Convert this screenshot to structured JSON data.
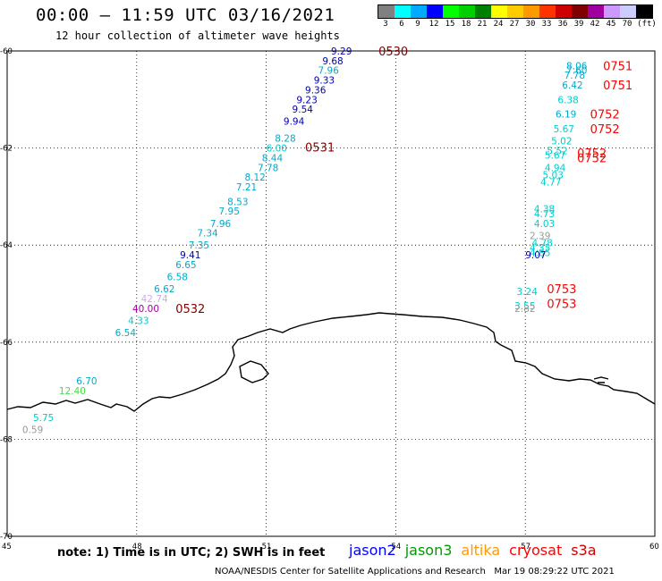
{
  "title": "00:00 – 11:59 UTC 03/16/2021",
  "subtitle": "12 hour collection of altimeter wave heights",
  "colorbar": {
    "colors": [
      "#808080",
      "#00ffff",
      "#00aaff",
      "#0000ff",
      "#00ff00",
      "#00d000",
      "#008000",
      "#ffff00",
      "#ffcc00",
      "#ff9900",
      "#ff3300",
      "#cc0000",
      "#800000",
      "#a000a0",
      "#cc99ff",
      "#ccccff",
      "#000000"
    ],
    "labels": [
      "3",
      "6",
      "9",
      "12",
      "15",
      "18",
      "21",
      "24",
      "27",
      "30",
      "33",
      "36",
      "39",
      "42",
      "45",
      "70",
      "(ft)"
    ]
  },
  "axes": {
    "lon_labels": [
      "45",
      "48",
      "51",
      "54",
      "57",
      "60"
    ],
    "lat_labels": [
      "-60",
      "-62",
      "-64",
      "-66",
      "-68",
      "-70"
    ]
  },
  "tracks": [
    {
      "time": "0530",
      "lon": 53.6,
      "lat": -60.0,
      "color": "#800000"
    },
    {
      "time": "0531",
      "lon": 51.9,
      "lat": -61.98,
      "color": "#800000"
    },
    {
      "time": "0532",
      "lon": 48.9,
      "lat": -65.3,
      "color": "#800000"
    },
    {
      "time": "0751",
      "lon": 58.8,
      "lat": -60.3,
      "color": "#ff0000"
    },
    {
      "time": "0751",
      "lon": 58.8,
      "lat": -60.7,
      "color": "#ff0000"
    },
    {
      "time": "0752",
      "lon": 58.5,
      "lat": -61.3,
      "color": "#ff0000"
    },
    {
      "time": "0752",
      "lon": 58.5,
      "lat": -61.6,
      "color": "#ff0000"
    },
    {
      "time": "0752",
      "lon": 58.2,
      "lat": -62.1,
      "color": "#ff0000"
    },
    {
      "time": "0752",
      "lon": 58.2,
      "lat": -62.2,
      "color": "#ff0000"
    },
    {
      "time": "0753",
      "lon": 57.5,
      "lat": -64.9,
      "color": "#ff0000"
    },
    {
      "time": "0753",
      "lon": 57.5,
      "lat": -65.2,
      "color": "#ff0000"
    }
  ],
  "observations": [
    {
      "v": "9.29",
      "lon": 52.5,
      "lat": -60.0,
      "color": "#0000aa"
    },
    {
      "v": "9.68",
      "lon": 52.3,
      "lat": -60.2,
      "color": "#0000aa"
    },
    {
      "v": "7.96",
      "lon": 52.2,
      "lat": -60.4,
      "color": "#00aacc"
    },
    {
      "v": "9.33",
      "lon": 52.1,
      "lat": -60.6,
      "color": "#0000aa"
    },
    {
      "v": "9.36",
      "lon": 51.9,
      "lat": -60.8,
      "color": "#0000aa"
    },
    {
      "v": "9.23",
      "lon": 51.7,
      "lat": -61.0,
      "color": "#0000aa"
    },
    {
      "v": "9.54",
      "lon": 51.6,
      "lat": -61.2,
      "color": "#0000aa"
    },
    {
      "v": "9.94",
      "lon": 51.4,
      "lat": -61.45,
      "color": "#0000aa"
    },
    {
      "v": "8.28",
      "lon": 51.2,
      "lat": -61.8,
      "color": "#00aacc"
    },
    {
      "v": "6.00",
      "lon": 51.0,
      "lat": -62.0,
      "color": "#00cccc"
    },
    {
      "v": "8.44",
      "lon": 50.9,
      "lat": -62.2,
      "color": "#00aacc"
    },
    {
      "v": "7.78",
      "lon": 50.8,
      "lat": -62.4,
      "color": "#00aacc"
    },
    {
      "v": "8.12",
      "lon": 50.5,
      "lat": -62.6,
      "color": "#00aacc"
    },
    {
      "v": "7.21",
      "lon": 50.3,
      "lat": -62.8,
      "color": "#00aacc"
    },
    {
      "v": "8.53",
      "lon": 50.1,
      "lat": -63.1,
      "color": "#00aacc"
    },
    {
      "v": "7.95",
      "lon": 49.9,
      "lat": -63.3,
      "color": "#00aacc"
    },
    {
      "v": "7.96",
      "lon": 49.7,
      "lat": -63.55,
      "color": "#00aacc"
    },
    {
      "v": "7.34",
      "lon": 49.4,
      "lat": -63.75,
      "color": "#00aacc"
    },
    {
      "v": "7.35",
      "lon": 49.2,
      "lat": -64.0,
      "color": "#00aacc"
    },
    {
      "v": "9.41",
      "lon": 49.0,
      "lat": -64.2,
      "color": "#0000aa"
    },
    {
      "v": "6.65",
      "lon": 48.9,
      "lat": -64.4,
      "color": "#00aacc"
    },
    {
      "v": "6.58",
      "lon": 48.7,
      "lat": -64.65,
      "color": "#00aacc"
    },
    {
      "v": "6.62",
      "lon": 48.4,
      "lat": -64.9,
      "color": "#00aacc"
    },
    {
      "v": "42.74",
      "lon": 48.1,
      "lat": -65.1,
      "color": "#ccaaee"
    },
    {
      "v": "40.00",
      "lon": 47.9,
      "lat": -65.3,
      "color": "#a000a0"
    },
    {
      "v": "4.33",
      "lon": 47.8,
      "lat": -65.55,
      "color": "#00cccc"
    },
    {
      "v": "6.54",
      "lon": 47.5,
      "lat": -65.8,
      "color": "#00aacc"
    },
    {
      "v": "6.70",
      "lon": 46.6,
      "lat": -66.8,
      "color": "#00aacc"
    },
    {
      "v": "12.40",
      "lon": 46.2,
      "lat": -67.0,
      "color": "#44dd44"
    },
    {
      "v": "5.75",
      "lon": 45.6,
      "lat": -67.55,
      "color": "#00cccc"
    },
    {
      "v": "0.59",
      "lon": 45.35,
      "lat": -67.8,
      "color": "#999999"
    },
    {
      "v": "8.06",
      "lon": 57.95,
      "lat": -60.3,
      "color": "#00aacc"
    },
    {
      "v": "7.60",
      "lon": 57.95,
      "lat": -60.4,
      "color": "#00aacc"
    },
    {
      "v": "7.78",
      "lon": 57.9,
      "lat": -60.5,
      "color": "#00aacc"
    },
    {
      "v": "6.42",
      "lon": 57.85,
      "lat": -60.7,
      "color": "#00aacc"
    },
    {
      "v": "6.38",
      "lon": 57.75,
      "lat": -61.0,
      "color": "#00cccc"
    },
    {
      "v": "6.19",
      "lon": 57.7,
      "lat": -61.3,
      "color": "#00aacc"
    },
    {
      "v": "5.67",
      "lon": 57.65,
      "lat": -61.6,
      "color": "#00cccc"
    },
    {
      "v": "5.02",
      "lon": 57.6,
      "lat": -61.85,
      "color": "#00cccc"
    },
    {
      "v": "5.52",
      "lon": 57.5,
      "lat": -62.05,
      "color": "#00cccc"
    },
    {
      "v": "5.67",
      "lon": 57.45,
      "lat": -62.15,
      "color": "#00cccc"
    },
    {
      "v": "4.94",
      "lon": 57.45,
      "lat": -62.4,
      "color": "#00cccc"
    },
    {
      "v": "5.03",
      "lon": 57.4,
      "lat": -62.55,
      "color": "#00cccc"
    },
    {
      "v": "4.77",
      "lon": 57.35,
      "lat": -62.7,
      "color": "#00cccc"
    },
    {
      "v": "4.38",
      "lon": 57.2,
      "lat": -63.25,
      "color": "#00cccc"
    },
    {
      "v": "4.73",
      "lon": 57.2,
      "lat": -63.35,
      "color": "#00cccc"
    },
    {
      "v": "4.03",
      "lon": 57.2,
      "lat": -63.55,
      "color": "#00cccc"
    },
    {
      "v": "2.39",
      "lon": 57.1,
      "lat": -63.8,
      "color": "#999999"
    },
    {
      "v": "4.78",
      "lon": 57.15,
      "lat": -63.95,
      "color": "#00cccc"
    },
    {
      "v": "4.35",
      "lon": 57.1,
      "lat": -64.05,
      "color": "#00cccc"
    },
    {
      "v": "4.85",
      "lon": 57.1,
      "lat": -64.15,
      "color": "#00cccc"
    },
    {
      "v": "9.07",
      "lon": 57.0,
      "lat": -64.2,
      "color": "#0000aa"
    },
    {
      "v": "3.24",
      "lon": 56.8,
      "lat": -64.95,
      "color": "#00cccc"
    },
    {
      "v": "3.55",
      "lon": 56.75,
      "lat": -65.25,
      "color": "#00cccc"
    },
    {
      "v": "2.82",
      "lon": 56.75,
      "lat": -65.3,
      "color": "#999999"
    }
  ],
  "note": "note: 1) Time is in UTC; 2) SWH is in feet",
  "satellites": [
    {
      "name": "jason2",
      "color": "#0000ff"
    },
    {
      "name": "jason3",
      "color": "#009900"
    },
    {
      "name": "altika",
      "color": "#ff9900"
    },
    {
      "name": "cryosat",
      "color": "#ff0000"
    },
    {
      "name": "s3a",
      "color": "#cc0000"
    }
  ],
  "footer": "NOAA/NESDIS Center for Satellite Applications and Research   Mar 19 08:29:22 UTC 2021"
}
